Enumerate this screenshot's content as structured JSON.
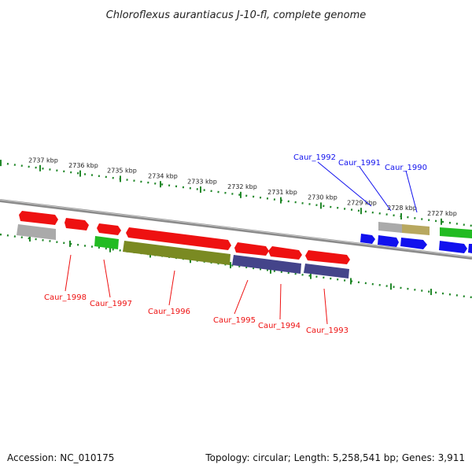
{
  "title": "Chloroflexus aurantiacus J-10-fl, complete genome",
  "footer": {
    "accession": "Accession: NC_010175",
    "summary": "Topology: circular; Length: 5,258,541 bp; Genes: 3,911"
  },
  "colors": {
    "red": "#ee1111",
    "blue": "#1111ee",
    "green": "#22bb22",
    "olive": "#7a8a22",
    "navy": "#44448a",
    "gray": "#aaaaaa",
    "tan": "#b8a860",
    "tick": "#22882a",
    "backbone": "#888888"
  },
  "ticks": [
    {
      "label": "2737 kbp"
    },
    {
      "label": "2736 kbp"
    },
    {
      "label": "2735 kbp"
    },
    {
      "label": "2734 kbp"
    },
    {
      "label": "2733 kbp"
    },
    {
      "label": "2732 kbp"
    },
    {
      "label": "2731 kbp"
    },
    {
      "label": "2730 kbp"
    },
    {
      "label": "2729 kbp"
    },
    {
      "label": "2728 kbp"
    },
    {
      "label": "2727 kbp"
    }
  ],
  "gene_labels_forward": [
    {
      "name": "Caur_1992"
    },
    {
      "name": "Caur_1991"
    },
    {
      "name": "Caur_1990"
    }
  ],
  "gene_labels_reverse": [
    {
      "name": "Caur_1998"
    },
    {
      "name": "Caur_1997"
    },
    {
      "name": "Caur_1996"
    },
    {
      "name": "Caur_1995"
    },
    {
      "name": "Caur_1994"
    },
    {
      "name": "Caur_1993"
    }
  ]
}
